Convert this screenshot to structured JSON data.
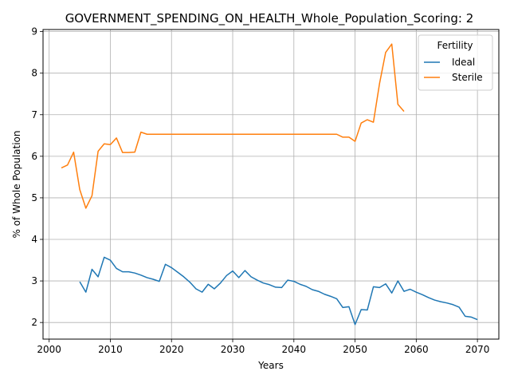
{
  "chart_data": {
    "type": "line",
    "title": "GOVERNMENT_SPENDING_ON_HEALTH_Whole_Population_Scoring: 2",
    "xlabel": "Years",
    "ylabel": "% of Whole Population",
    "xlim": [
      1999,
      2073.5
    ],
    "ylim": [
      1.6,
      9.05
    ],
    "xticks": [
      2000,
      2010,
      2020,
      2030,
      2040,
      2050,
      2060,
      2070
    ],
    "yticks": [
      2,
      3,
      4,
      5,
      6,
      7,
      8,
      9
    ],
    "grid": true,
    "legend": {
      "title": "Fertility",
      "placement": "top-right"
    },
    "series": [
      {
        "name": "Ideal",
        "color": "#1f77b4",
        "x": [
          2005,
          2006,
          2007,
          2008,
          2009,
          2010,
          2011,
          2012,
          2013,
          2014,
          2015,
          2016,
          2017,
          2018,
          2019,
          2020,
          2021,
          2022,
          2023,
          2024,
          2025,
          2026,
          2027,
          2028,
          2029,
          2030,
          2031,
          2032,
          2033,
          2034,
          2035,
          2036,
          2037,
          2038,
          2039,
          2040,
          2041,
          2042,
          2043,
          2044,
          2045,
          2046,
          2047,
          2048,
          2049,
          2050,
          2051,
          2052,
          2053,
          2054,
          2055,
          2056,
          2057,
          2058,
          2059,
          2060,
          2061,
          2062,
          2063,
          2064,
          2065,
          2066,
          2067,
          2068,
          2069,
          2070
        ],
        "values": [
          2.98,
          2.73,
          3.28,
          3.1,
          3.57,
          3.5,
          3.3,
          3.22,
          3.22,
          3.19,
          3.14,
          3.08,
          3.04,
          2.99,
          3.4,
          3.32,
          3.21,
          3.1,
          2.97,
          2.81,
          2.73,
          2.92,
          2.81,
          2.95,
          3.13,
          3.24,
          3.08,
          3.25,
          3.1,
          3.02,
          2.95,
          2.91,
          2.85,
          2.84,
          3.02,
          2.99,
          2.92,
          2.87,
          2.79,
          2.75,
          2.68,
          2.63,
          2.57,
          2.36,
          2.38,
          1.95,
          2.31,
          2.3,
          2.86,
          2.84,
          2.93,
          2.71,
          3.0,
          2.75,
          2.8,
          2.73,
          2.67,
          2.6,
          2.54,
          2.5,
          2.47,
          2.43,
          2.37,
          2.15,
          2.13,
          2.07
        ]
      },
      {
        "name": "Sterile",
        "color": "#ff7f0e",
        "x": [
          2002,
          2003,
          2004,
          2005,
          2006,
          2007,
          2008,
          2009,
          2010,
          2011,
          2012,
          2013,
          2014,
          2015,
          2016,
          2017,
          2018,
          2019,
          2020,
          2021,
          2022,
          2023,
          2024,
          2025,
          2026,
          2027,
          2028,
          2029,
          2030,
          2031,
          2032,
          2033,
          2034,
          2035,
          2036,
          2037,
          2038,
          2039,
          2040,
          2041,
          2042,
          2043,
          2044,
          2045,
          2046,
          2047,
          2048,
          2049,
          2050,
          2051,
          2052,
          2053,
          2054,
          2055,
          2056,
          2057,
          2058
        ],
        "values": [
          5.72,
          5.79,
          6.1,
          5.2,
          4.75,
          5.05,
          6.12,
          6.3,
          6.28,
          6.44,
          6.09,
          6.09,
          6.1,
          6.58,
          6.53,
          6.53,
          6.53,
          6.53,
          6.53,
          6.53,
          6.53,
          6.53,
          6.53,
          6.53,
          6.53,
          6.53,
          6.53,
          6.53,
          6.53,
          6.53,
          6.53,
          6.53,
          6.53,
          6.53,
          6.53,
          6.53,
          6.53,
          6.53,
          6.53,
          6.53,
          6.53,
          6.53,
          6.53,
          6.53,
          6.53,
          6.53,
          6.46,
          6.46,
          6.36,
          6.8,
          6.88,
          6.82,
          7.75,
          8.5,
          8.7,
          7.25,
          7.08
        ]
      }
    ]
  }
}
